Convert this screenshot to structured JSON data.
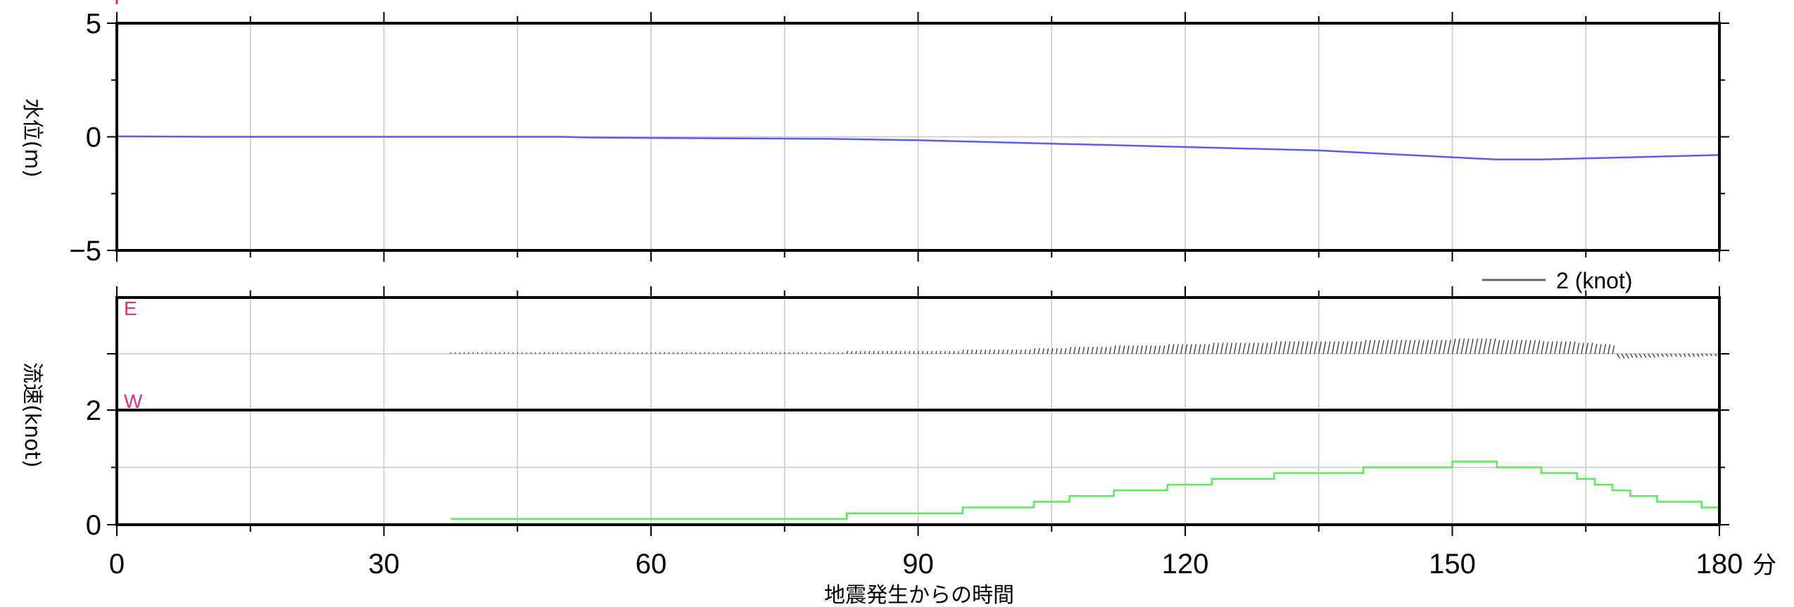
{
  "chart_data": [
    {
      "type": "line",
      "ylabel": "水位(m)",
      "ylim": [
        -5,
        5
      ],
      "yticks": [
        "5",
        "0",
        "−5"
      ],
      "xlim": [
        0,
        180
      ],
      "grid": true,
      "line_color": "#5a5aff",
      "series": [
        {
          "x": [
            0,
            5,
            10,
            20,
            30,
            40,
            50,
            53,
            60,
            70,
            80,
            85,
            90,
            95,
            100,
            105,
            110,
            115,
            120,
            125,
            130,
            135,
            140,
            145,
            150,
            155,
            160,
            165,
            170,
            175,
            180
          ],
          "values": [
            0.02,
            0.01,
            0.0,
            0.0,
            0.0,
            0.0,
            0.0,
            -0.03,
            -0.05,
            -0.07,
            -0.09,
            -0.12,
            -0.15,
            -0.2,
            -0.25,
            -0.3,
            -0.35,
            -0.4,
            -0.45,
            -0.5,
            -0.55,
            -0.6,
            -0.7,
            -0.8,
            -0.9,
            -1.0,
            -1.0,
            -0.95,
            -0.9,
            -0.85,
            -0.8
          ]
        }
      ]
    },
    {
      "type": "scatter",
      "subtype": "vector-stick",
      "ylabel": "流速(knot)",
      "direction_labels": {
        "east": "E",
        "west": "W"
      },
      "legend": {
        "value": "2 (knot)"
      },
      "color": "#333333",
      "start_minute": 37.5,
      "end_minute": 180,
      "grid": true
    },
    {
      "type": "line",
      "step": true,
      "ylim": [
        0,
        2
      ],
      "yticks": [
        "2",
        "0"
      ],
      "xlim": [
        0,
        180
      ],
      "xticks": [
        "0",
        "30",
        "60",
        "90",
        "120",
        "150",
        "180"
      ],
      "x_unit": "分",
      "xlabel": "地震発生からの時間",
      "grid": true,
      "line_color": "#55ee55",
      "series": [
        {
          "x": [
            37.5,
            82,
            95,
            103,
            107,
            112,
            118,
            123,
            130,
            140,
            150,
            155,
            160,
            164,
            166,
            168,
            170,
            173,
            178,
            180
          ],
          "values": [
            0.1,
            0.2,
            0.3,
            0.4,
            0.5,
            0.6,
            0.7,
            0.8,
            0.9,
            1.0,
            1.1,
            1.0,
            0.9,
            0.8,
            0.7,
            0.6,
            0.5,
            0.4,
            0.3,
            0.2
          ]
        }
      ]
    }
  ]
}
